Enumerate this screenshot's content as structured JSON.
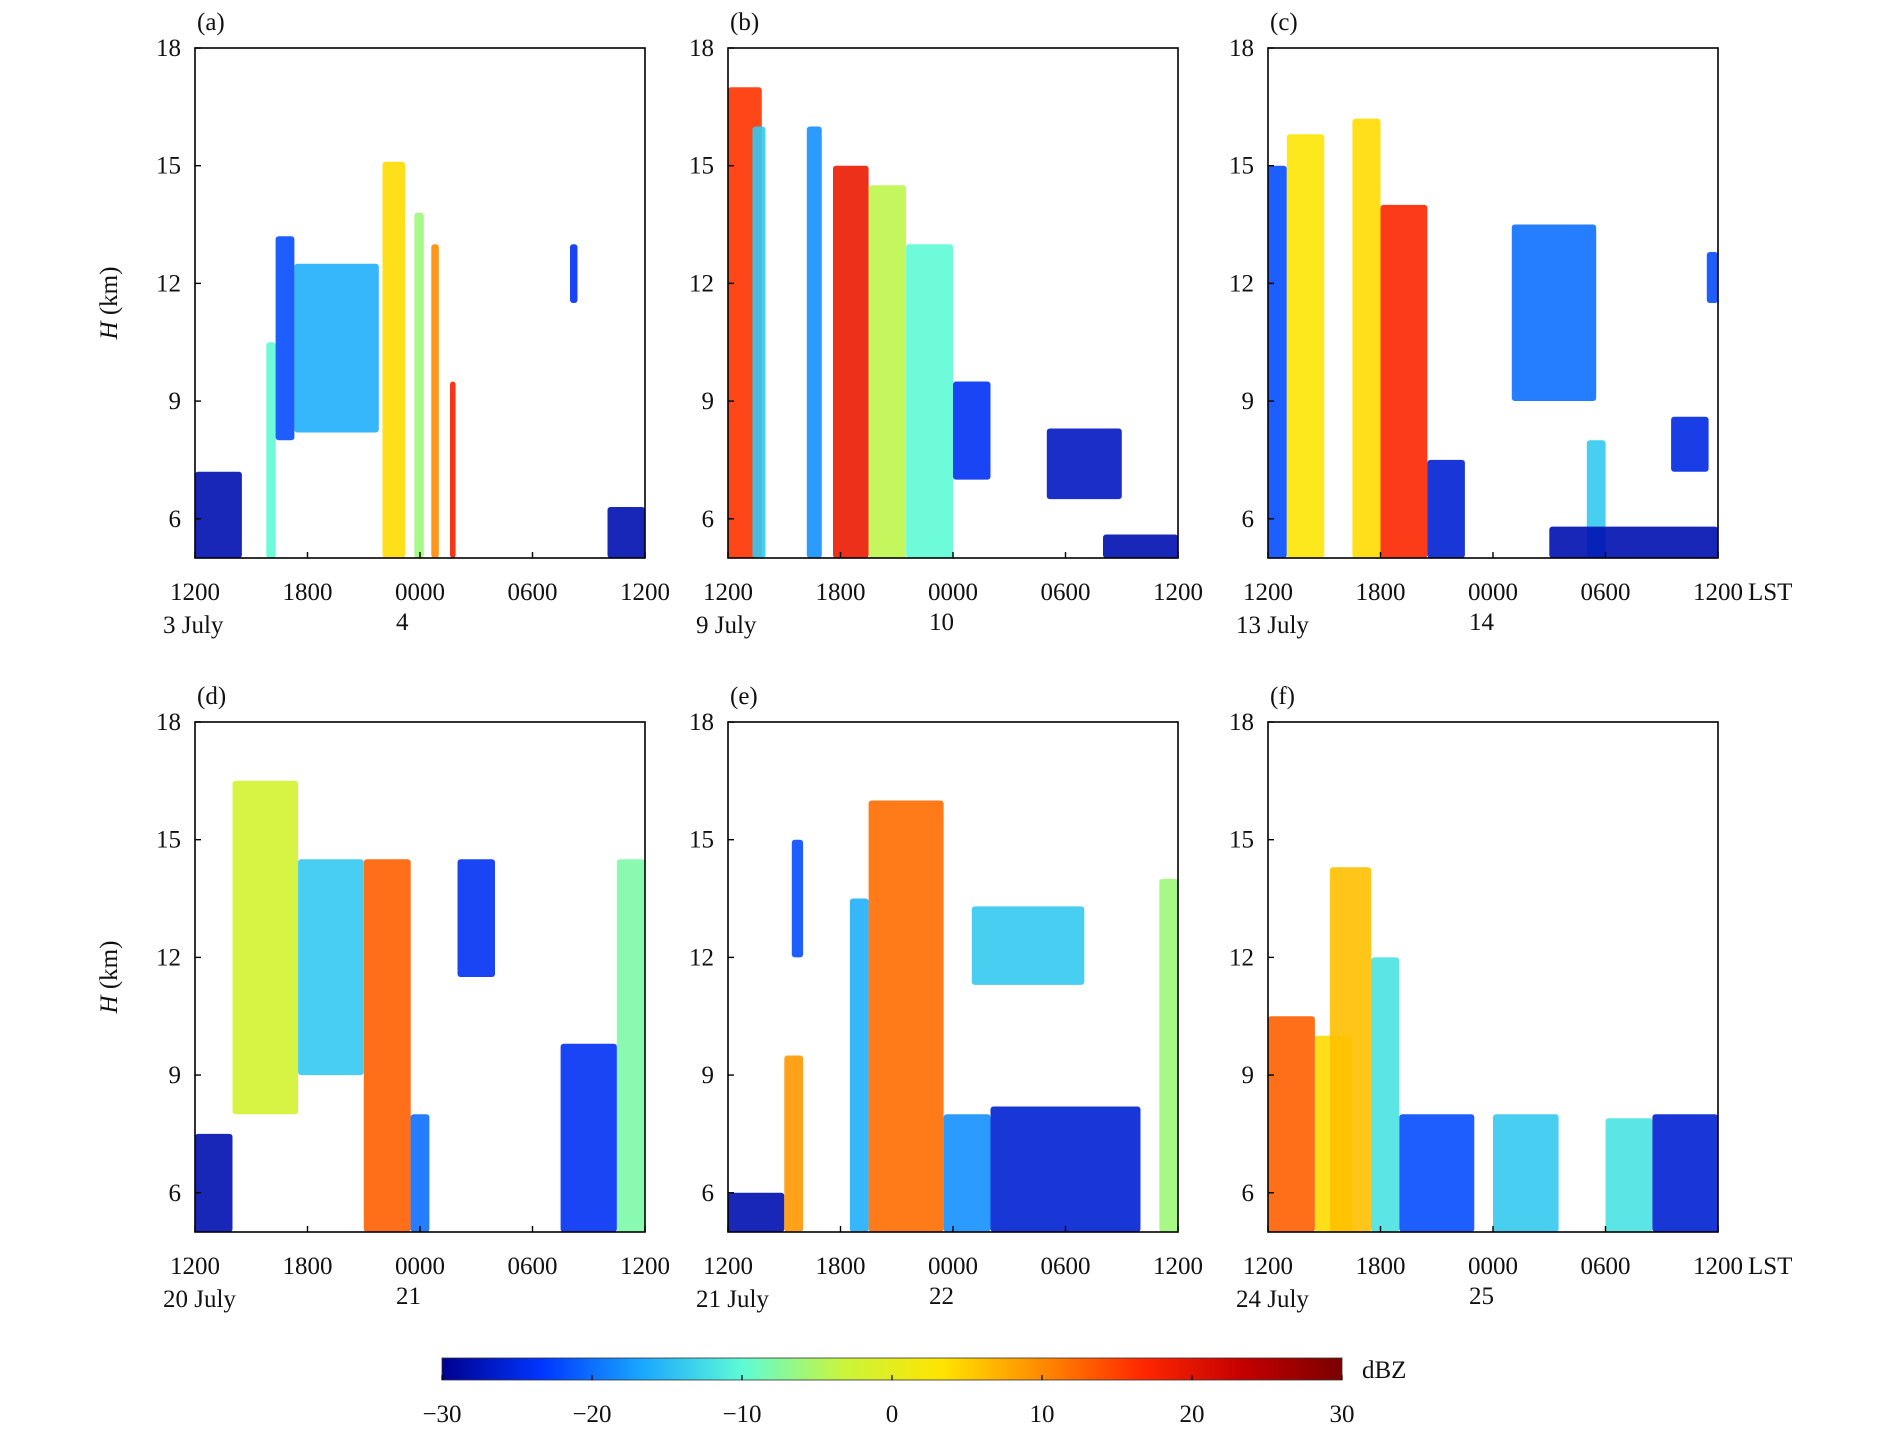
{
  "chart_data": [
    {
      "panel": "(a)",
      "type": "heatmap",
      "xlabel_time": "LST",
      "ylabel": "H (km)",
      "ylim": [
        5,
        18
      ],
      "yticks": [
        6,
        9,
        12,
        15,
        18
      ],
      "xlim_hours": [
        0,
        24
      ],
      "xtick_labels": [
        "1200",
        "1800",
        "0000",
        "0600",
        "1200"
      ],
      "date_start": "3 July",
      "date_next": "4",
      "echoes": [
        {
          "t0": 0.0,
          "t1": 2.5,
          "zb": 5,
          "zt": 7.2,
          "dbz": -28
        },
        {
          "t0": 3.8,
          "t1": 4.3,
          "zb": 5,
          "zt": 10.5,
          "dbz": -10
        },
        {
          "t0": 4.3,
          "t1": 5.3,
          "zb": 8.0,
          "zt": 13.2,
          "dbz": -22
        },
        {
          "t0": 5.3,
          "t1": 9.8,
          "zb": 8.2,
          "zt": 12.5,
          "dbz": -16
        },
        {
          "t0": 10.0,
          "t1": 11.2,
          "zb": 5,
          "zt": 15.1,
          "dbz": 4
        },
        {
          "t0": 11.7,
          "t1": 12.2,
          "zb": 5,
          "zt": 13.8,
          "dbz": -6
        },
        {
          "t0": 12.6,
          "t1": 13.0,
          "zb": 5,
          "zt": 13.0,
          "dbz": 10
        },
        {
          "t0": 13.6,
          "t1": 13.9,
          "zb": 5,
          "zt": 9.5,
          "dbz": 18
        },
        {
          "t0": 20.0,
          "t1": 20.4,
          "zb": 11.5,
          "zt": 13.0,
          "dbz": -24
        },
        {
          "t0": 22.0,
          "t1": 24.0,
          "zb": 5,
          "zt": 6.3,
          "dbz": -28
        }
      ]
    },
    {
      "panel": "(b)",
      "type": "heatmap",
      "xlabel_time": "LST",
      "ylabel": "",
      "ylim": [
        5,
        18
      ],
      "yticks": [
        6,
        9,
        12,
        15,
        18
      ],
      "xlim_hours": [
        0,
        24
      ],
      "xtick_labels": [
        "1200",
        "1800",
        "0000",
        "0600",
        "1200"
      ],
      "date_start": "9 July",
      "date_next": "10",
      "echoes": [
        {
          "t0": 0.0,
          "t1": 1.8,
          "zb": 5,
          "zt": 17.0,
          "dbz": 16
        },
        {
          "t0": 1.3,
          "t1": 2.0,
          "zb": 5,
          "zt": 16.0,
          "dbz": -14
        },
        {
          "t0": 4.2,
          "t1": 5.0,
          "zb": 5,
          "zt": 16.0,
          "dbz": -18
        },
        {
          "t0": 5.6,
          "t1": 7.5,
          "zb": 5,
          "zt": 15.0,
          "dbz": 19
        },
        {
          "t0": 7.5,
          "t1": 9.5,
          "zb": 5,
          "zt": 14.5,
          "dbz": -4
        },
        {
          "t0": 9.5,
          "t1": 12.0,
          "zb": 5,
          "zt": 13.0,
          "dbz": -10
        },
        {
          "t0": 12.0,
          "t1": 14.0,
          "zb": 7.0,
          "zt": 9.5,
          "dbz": -24
        },
        {
          "t0": 17.0,
          "t1": 21.0,
          "zb": 6.5,
          "zt": 8.3,
          "dbz": -27
        },
        {
          "t0": 20.0,
          "t1": 24.0,
          "zb": 5,
          "zt": 5.6,
          "dbz": -28
        }
      ]
    },
    {
      "panel": "(c)",
      "type": "heatmap",
      "xlabel_time": "LST",
      "ylabel": "",
      "ylim": [
        5,
        18
      ],
      "yticks": [
        6,
        9,
        12,
        15,
        18
      ],
      "xlim_hours": [
        0,
        24
      ],
      "xtick_labels": [
        "1200",
        "1800",
        "0000",
        "0600",
        "1200"
      ],
      "date_start": "13 July",
      "date_next": "14",
      "echoes": [
        {
          "t0": 0.0,
          "t1": 1.0,
          "zb": 5,
          "zt": 15.0,
          "dbz": -22
        },
        {
          "t0": 1.0,
          "t1": 3.0,
          "zb": 5,
          "zt": 15.8,
          "dbz": 3
        },
        {
          "t0": 4.5,
          "t1": 6.0,
          "zb": 5,
          "zt": 16.2,
          "dbz": 4
        },
        {
          "t0": 6.0,
          "t1": 8.5,
          "zb": 5,
          "zt": 14.0,
          "dbz": 17
        },
        {
          "t0": 8.5,
          "t1": 10.5,
          "zb": 5,
          "zt": 7.5,
          "dbz": -26
        },
        {
          "t0": 13.0,
          "t1": 17.5,
          "zb": 9.0,
          "zt": 13.5,
          "dbz": -20
        },
        {
          "t0": 17.0,
          "t1": 18.0,
          "zb": 5,
          "zt": 8.0,
          "dbz": -14
        },
        {
          "t0": 21.5,
          "t1": 23.5,
          "zb": 7.2,
          "zt": 8.6,
          "dbz": -25
        },
        {
          "t0": 23.4,
          "t1": 24.0,
          "zb": 11.5,
          "zt": 12.8,
          "dbz": -22
        },
        {
          "t0": 15.0,
          "t1": 24.0,
          "zb": 5,
          "zt": 5.8,
          "dbz": -28
        }
      ]
    },
    {
      "panel": "(d)",
      "type": "heatmap",
      "xlabel_time": "LST",
      "ylabel": "H (km)",
      "ylim": [
        5,
        18
      ],
      "yticks": [
        6,
        9,
        12,
        15,
        18
      ],
      "xlim_hours": [
        0,
        24
      ],
      "xtick_labels": [
        "1200",
        "1800",
        "0000",
        "0600",
        "1200"
      ],
      "date_start": "20 July",
      "date_next": "21",
      "echoes": [
        {
          "t0": 0.0,
          "t1": 2.0,
          "zb": 5,
          "zt": 7.5,
          "dbz": -28
        },
        {
          "t0": 2.0,
          "t1": 5.5,
          "zb": 8.0,
          "zt": 16.5,
          "dbz": -2
        },
        {
          "t0": 5.5,
          "t1": 9.0,
          "zb": 9.0,
          "zt": 14.5,
          "dbz": -14
        },
        {
          "t0": 9.0,
          "t1": 11.5,
          "zb": 5,
          "zt": 14.5,
          "dbz": 13
        },
        {
          "t0": 11.5,
          "t1": 12.5,
          "zb": 5,
          "zt": 8.0,
          "dbz": -20
        },
        {
          "t0": 14.0,
          "t1": 16.0,
          "zb": 11.5,
          "zt": 14.5,
          "dbz": -24
        },
        {
          "t0": 19.5,
          "t1": 22.5,
          "zb": 5,
          "zt": 9.8,
          "dbz": -24
        },
        {
          "t0": 22.5,
          "t1": 24.0,
          "zb": 5,
          "zt": 14.5,
          "dbz": -8
        }
      ]
    },
    {
      "panel": "(e)",
      "type": "heatmap",
      "xlabel_time": "LST",
      "ylabel": "",
      "ylim": [
        5,
        18
      ],
      "yticks": [
        6,
        9,
        12,
        15,
        18
      ],
      "xlim_hours": [
        0,
        24
      ],
      "xtick_labels": [
        "1200",
        "1800",
        "0000",
        "0600",
        "1200"
      ],
      "date_start": "21 July",
      "date_next": "22",
      "echoes": [
        {
          "t0": 0.0,
          "t1": 3.0,
          "zb": 5,
          "zt": 6.0,
          "dbz": -28
        },
        {
          "t0": 3.0,
          "t1": 4.0,
          "zb": 5,
          "zt": 9.5,
          "dbz": 9
        },
        {
          "t0": 3.4,
          "t1": 4.0,
          "zb": 12.0,
          "zt": 15.0,
          "dbz": -22
        },
        {
          "t0": 6.5,
          "t1": 7.5,
          "zb": 5,
          "zt": 13.5,
          "dbz": -16
        },
        {
          "t0": 7.5,
          "t1": 11.5,
          "zb": 5,
          "zt": 16.0,
          "dbz": 12
        },
        {
          "t0": 11.5,
          "t1": 14.0,
          "zb": 5,
          "zt": 8.0,
          "dbz": -18
        },
        {
          "t0": 13.0,
          "t1": 19.0,
          "zb": 11.3,
          "zt": 13.3,
          "dbz": -14
        },
        {
          "t0": 14.0,
          "t1": 22.0,
          "zb": 5,
          "zt": 8.2,
          "dbz": -26
        },
        {
          "t0": 23.0,
          "t1": 24.0,
          "zb": 5,
          "zt": 14.0,
          "dbz": -6
        }
      ]
    },
    {
      "panel": "(f)",
      "type": "heatmap",
      "xlabel_time": "LST",
      "ylabel": "",
      "ylim": [
        5,
        18
      ],
      "yticks": [
        6,
        9,
        12,
        15,
        18
      ],
      "xlim_hours": [
        0,
        24
      ],
      "xtick_labels": [
        "1200",
        "1800",
        "0000",
        "0600",
        "1200"
      ],
      "date_start": "24 July",
      "date_next": "25",
      "echoes": [
        {
          "t0": 0.0,
          "t1": 2.5,
          "zb": 5,
          "zt": 10.5,
          "dbz": 13
        },
        {
          "t0": 2.5,
          "t1": 4.5,
          "zb": 5,
          "zt": 10.0,
          "dbz": 4
        },
        {
          "t0": 3.3,
          "t1": 5.5,
          "zb": 5,
          "zt": 14.3,
          "dbz": 6
        },
        {
          "t0": 5.5,
          "t1": 7.0,
          "zb": 5,
          "zt": 12.0,
          "dbz": -12
        },
        {
          "t0": 7.0,
          "t1": 11.0,
          "zb": 5,
          "zt": 8.0,
          "dbz": -22
        },
        {
          "t0": 12.0,
          "t1": 15.5,
          "zb": 5,
          "zt": 8.0,
          "dbz": -14
        },
        {
          "t0": 18.0,
          "t1": 20.5,
          "zb": 5,
          "zt": 7.9,
          "dbz": -12
        },
        {
          "t0": 20.5,
          "t1": 24.0,
          "zb": 5,
          "zt": 8.0,
          "dbz": -26
        }
      ]
    }
  ],
  "colorbar": {
    "label": "dBZ",
    "min": -30,
    "max": 30,
    "tick_values": [
      -30,
      -20,
      -10,
      0,
      10,
      20,
      30
    ],
    "tick_labels": [
      "−30",
      "−20",
      "−10",
      "0",
      "10",
      "20",
      "30"
    ],
    "stops": [
      "#00008f",
      "#0036ff",
      "#19a7ff",
      "#5dfbd6",
      "#c8f53c",
      "#ffe400",
      "#ff8a00",
      "#ff2800",
      "#c50000",
      "#7a0000"
    ]
  },
  "units": {
    "time_suffix": "LST"
  }
}
